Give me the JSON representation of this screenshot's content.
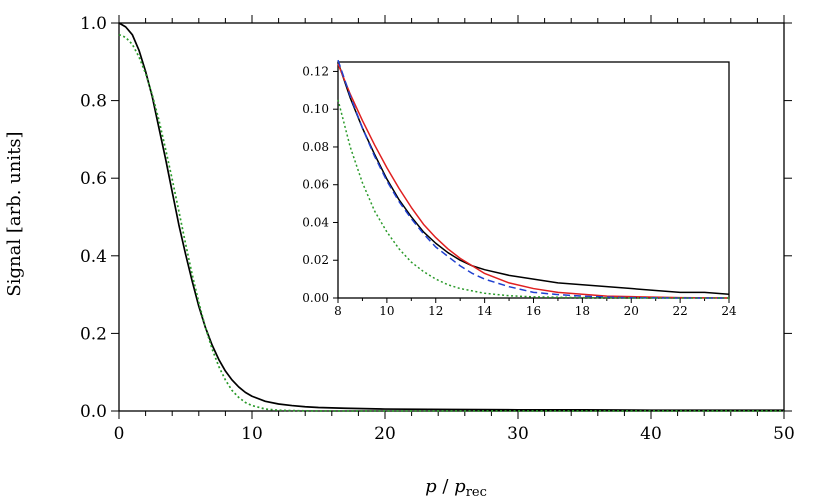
{
  "chart_data": [
    {
      "id": "main",
      "type": "line",
      "title": "",
      "xlabel": {
        "p": "p",
        "slash": " / ",
        "base": "p",
        "sub": "rec"
      },
      "ylabel": "Signal [arb. units]",
      "xlim": [
        0,
        50
      ],
      "ylim": [
        0,
        1.0
      ],
      "xticks": [
        0,
        10,
        20,
        30,
        40,
        50
      ],
      "yticks": [
        0.0,
        0.2,
        0.4,
        0.6,
        0.8,
        1.0
      ],
      "xtick_labels": [
        "0",
        "10",
        "20",
        "30",
        "40",
        "50"
      ],
      "ytick_labels": [
        "0.0",
        "0.2",
        "0.4",
        "0.6",
        "0.8",
        "1.0"
      ],
      "grid": false,
      "series": [
        {
          "color": "#000000",
          "style": "solid",
          "points": [
            [
              0,
              1.0
            ],
            [
              0.5,
              0.99
            ],
            [
              1,
              0.97
            ],
            [
              1.5,
              0.93
            ],
            [
              2,
              0.875
            ],
            [
              2.5,
              0.81
            ],
            [
              3,
              0.73
            ],
            [
              3.5,
              0.65
            ],
            [
              4,
              0.565
            ],
            [
              4.5,
              0.48
            ],
            [
              5,
              0.405
            ],
            [
              5.5,
              0.335
            ],
            [
              6,
              0.27
            ],
            [
              6.5,
              0.215
            ],
            [
              7,
              0.17
            ],
            [
              7.5,
              0.133
            ],
            [
              8,
              0.103
            ],
            [
              8.5,
              0.08
            ],
            [
              9,
              0.062
            ],
            [
              9.5,
              0.048
            ],
            [
              10,
              0.038
            ],
            [
              11,
              0.025
            ],
            [
              12,
              0.018
            ],
            [
              13,
              0.014
            ],
            [
              14,
              0.011
            ],
            [
              15,
              0.009
            ],
            [
              17,
              0.007
            ],
            [
              20,
              0.005
            ],
            [
              25,
              0.004
            ],
            [
              30,
              0.003
            ],
            [
              35,
              0.003
            ],
            [
              40,
              0.002
            ],
            [
              45,
              0.002
            ],
            [
              50,
              0.002
            ]
          ]
        },
        {
          "color": "#2a9a2a",
          "style": "dotted",
          "points": [
            [
              0,
              0.97
            ],
            [
              0.5,
              0.963
            ],
            [
              1,
              0.945
            ],
            [
              1.5,
              0.913
            ],
            [
              2,
              0.87
            ],
            [
              2.5,
              0.815
            ],
            [
              3,
              0.75
            ],
            [
              3.5,
              0.675
            ],
            [
              4,
              0.597
            ],
            [
              4.5,
              0.515
            ],
            [
              5,
              0.432
            ],
            [
              5.5,
              0.352
            ],
            [
              6,
              0.28
            ],
            [
              6.5,
              0.215
            ],
            [
              7,
              0.16
            ],
            [
              7.5,
              0.115
            ],
            [
              8,
              0.08
            ],
            [
              8.5,
              0.053
            ],
            [
              9,
              0.035
            ],
            [
              9.5,
              0.022
            ],
            [
              10,
              0.014
            ],
            [
              11,
              0.005
            ],
            [
              12,
              0.002
            ],
            [
              13,
              0.001
            ],
            [
              15,
              0.0
            ],
            [
              20,
              0.0
            ],
            [
              30,
              0.0
            ],
            [
              40,
              0.0
            ],
            [
              50,
              0.0
            ]
          ]
        }
      ]
    },
    {
      "id": "inset",
      "type": "line",
      "title": "",
      "xlim": [
        8,
        24
      ],
      "ylim": [
        0,
        0.125
      ],
      "xticks": [
        8,
        10,
        12,
        14,
        16,
        18,
        20,
        22,
        24
      ],
      "yticks": [
        0.0,
        0.02,
        0.04,
        0.06,
        0.08,
        0.1,
        0.12
      ],
      "xtick_labels": [
        "8",
        "10",
        "12",
        "14",
        "16",
        "18",
        "20",
        "22",
        "24"
      ],
      "ytick_labels": [
        "0.00",
        "0.02",
        "0.04",
        "0.06",
        "0.08",
        "0.10",
        "0.12"
      ],
      "grid": false,
      "series": [
        {
          "color": "#000000",
          "style": "solid",
          "points": [
            [
              8,
              0.125
            ],
            [
              8.5,
              0.106
            ],
            [
              9,
              0.09
            ],
            [
              9.5,
              0.076
            ],
            [
              10,
              0.063
            ],
            [
              10.5,
              0.052
            ],
            [
              11,
              0.043
            ],
            [
              11.5,
              0.035
            ],
            [
              12,
              0.029
            ],
            [
              12.5,
              0.024
            ],
            [
              13,
              0.02
            ],
            [
              13.5,
              0.017
            ],
            [
              14,
              0.015
            ],
            [
              15,
              0.012
            ],
            [
              16,
              0.01
            ],
            [
              17,
              0.008
            ],
            [
              18,
              0.007
            ],
            [
              19,
              0.006
            ],
            [
              20,
              0.005
            ],
            [
              21,
              0.004
            ],
            [
              22,
              0.003
            ],
            [
              23,
              0.003
            ],
            [
              24,
              0.002
            ]
          ]
        },
        {
          "color": "#e02020",
          "style": "solid",
          "points": [
            [
              8,
              0.124
            ],
            [
              8.5,
              0.108
            ],
            [
              9,
              0.094
            ],
            [
              9.5,
              0.081
            ],
            [
              10,
              0.069
            ],
            [
              10.5,
              0.058
            ],
            [
              11,
              0.048
            ],
            [
              11.5,
              0.039
            ],
            [
              12,
              0.032
            ],
            [
              12.5,
              0.026
            ],
            [
              13,
              0.021
            ],
            [
              13.5,
              0.017
            ],
            [
              14,
              0.013
            ],
            [
              15,
              0.008
            ],
            [
              16,
              0.005
            ],
            [
              17,
              0.003
            ],
            [
              18,
              0.002
            ],
            [
              19,
              0.001
            ],
            [
              20,
              0.0007
            ],
            [
              22,
              0.0002
            ],
            [
              24,
              0.0
            ]
          ]
        },
        {
          "color": "#2040d0",
          "style": "dashed",
          "points": [
            [
              8,
              0.126
            ],
            [
              8.5,
              0.107
            ],
            [
              9,
              0.09
            ],
            [
              9.5,
              0.075
            ],
            [
              10,
              0.062
            ],
            [
              10.5,
              0.051
            ],
            [
              11,
              0.042
            ],
            [
              11.5,
              0.034
            ],
            [
              12,
              0.027
            ],
            [
              12.5,
              0.022
            ],
            [
              13,
              0.017
            ],
            [
              13.5,
              0.013
            ],
            [
              14,
              0.01
            ],
            [
              15,
              0.006
            ],
            [
              16,
              0.003
            ],
            [
              17,
              0.0018
            ],
            [
              18,
              0.001
            ],
            [
              19,
              0.0005
            ],
            [
              20,
              0.0002
            ],
            [
              22,
              0.0
            ],
            [
              24,
              0.0
            ]
          ]
        },
        {
          "color": "#2a9a2a",
          "style": "dotted",
          "points": [
            [
              8,
              0.105
            ],
            [
              8.5,
              0.08
            ],
            [
              9,
              0.061
            ],
            [
              9.5,
              0.046
            ],
            [
              10,
              0.035
            ],
            [
              10.5,
              0.026
            ],
            [
              11,
              0.019
            ],
            [
              11.5,
              0.014
            ],
            [
              12,
              0.01
            ],
            [
              12.5,
              0.007
            ],
            [
              13,
              0.005
            ],
            [
              14,
              0.0025
            ],
            [
              15,
              0.0012
            ],
            [
              16,
              0.0006
            ],
            [
              18,
              0.0002
            ],
            [
              20,
              0.0
            ],
            [
              24,
              0.0
            ]
          ]
        }
      ]
    }
  ]
}
